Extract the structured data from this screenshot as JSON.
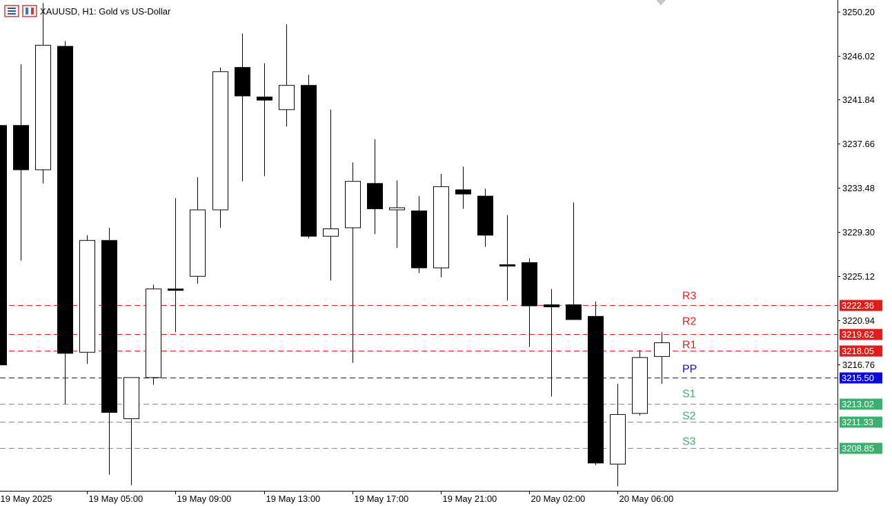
{
  "window": {
    "symbol_title": "XAUUSD, H1:  Gold vs US-Dollar"
  },
  "icons": [
    "menu-icon",
    "one-click-trading-icon"
  ],
  "colors": {
    "bull_body": "#ffffff",
    "bear_body": "#000000",
    "resistance": "#e31b1b",
    "pivot": "#0a0ad6",
    "support": "#3dae6f",
    "grid": "#000000"
  },
  "chart_data": {
    "type": "candlestick",
    "symbol": "XAUUSD",
    "timeframe": "H1",
    "ylim": [
      3204.7,
      3250.9
    ],
    "y_ticks": [
      3250.2,
      3246.02,
      3241.84,
      3237.66,
      3233.48,
      3229.3,
      3225.12,
      3220.94,
      3216.76
    ],
    "x_tick_labels": [
      "19 May 2025",
      "19 May 05:00",
      "19 May 09:00",
      "19 May 13:00",
      "19 May 17:00",
      "19 May 21:00",
      "20 May 02:00",
      "20 May 06:00"
    ],
    "x_tick_index": [
      0,
      4,
      8,
      12,
      16,
      20,
      24,
      28
    ],
    "candles": [
      {
        "o": 3239.4,
        "h": 3239.4,
        "l": 3216.7,
        "c": 3216.7
      },
      {
        "o": 3239.4,
        "h": 3245.2,
        "l": 3226.6,
        "c": 3235.2
      },
      {
        "o": 3235.2,
        "h": 3251.0,
        "l": 3233.9,
        "c": 3247.0
      },
      {
        "o": 3246.9,
        "h": 3247.4,
        "l": 3213.0,
        "c": 3217.8
      },
      {
        "o": 3217.9,
        "h": 3229.0,
        "l": 3216.8,
        "c": 3228.5
      },
      {
        "o": 3228.5,
        "h": 3229.7,
        "l": 3206.3,
        "c": 3212.2
      },
      {
        "o": 3211.6,
        "h": 3215.2,
        "l": 3205.3,
        "c": 3215.5
      },
      {
        "o": 3215.5,
        "h": 3224.3,
        "l": 3214.8,
        "c": 3223.9
      },
      {
        "o": 3223.9,
        "h": 3232.5,
        "l": 3219.8,
        "c": 3223.8
      },
      {
        "o": 3225.1,
        "h": 3234.5,
        "l": 3224.4,
        "c": 3231.4
      },
      {
        "o": 3231.4,
        "h": 3244.9,
        "l": 3229.7,
        "c": 3244.5
      },
      {
        "o": 3244.9,
        "h": 3248.1,
        "l": 3234.1,
        "c": 3242.2
      },
      {
        "o": 3242.1,
        "h": 3245.3,
        "l": 3234.6,
        "c": 3241.8
      },
      {
        "o": 3240.9,
        "h": 3249.0,
        "l": 3239.3,
        "c": 3243.2
      },
      {
        "o": 3243.2,
        "h": 3244.2,
        "l": 3228.7,
        "c": 3228.9
      },
      {
        "o": 3228.9,
        "h": 3240.9,
        "l": 3224.7,
        "c": 3229.6
      },
      {
        "o": 3229.7,
        "h": 3235.9,
        "l": 3216.9,
        "c": 3234.1
      },
      {
        "o": 3233.9,
        "h": 3238.1,
        "l": 3229.1,
        "c": 3231.5
      },
      {
        "o": 3231.4,
        "h": 3234.2,
        "l": 3227.8,
        "c": 3231.6
      },
      {
        "o": 3231.3,
        "h": 3232.7,
        "l": 3225.4,
        "c": 3225.9
      },
      {
        "o": 3225.9,
        "h": 3234.8,
        "l": 3225.0,
        "c": 3233.6
      },
      {
        "o": 3233.3,
        "h": 3235.5,
        "l": 3231.5,
        "c": 3232.9
      },
      {
        "o": 3232.7,
        "h": 3233.4,
        "l": 3227.9,
        "c": 3229.0
      },
      {
        "o": 3226.2,
        "h": 3230.9,
        "l": 3222.8,
        "c": 3226.1
      },
      {
        "o": 3226.4,
        "h": 3226.8,
        "l": 3218.4,
        "c": 3222.3
      },
      {
        "o": 3222.4,
        "h": 3223.9,
        "l": 3213.7,
        "c": 3222.2
      },
      {
        "o": 3222.4,
        "h": 3232.1,
        "l": 3221.1,
        "c": 3221.0
      },
      {
        "o": 3221.3,
        "h": 3222.7,
        "l": 3207.2,
        "c": 3207.4
      },
      {
        "o": 3207.3,
        "h": 3214.9,
        "l": 3205.2,
        "c": 3212.0
      },
      {
        "o": 3212.1,
        "h": 3218.1,
        "l": 3211.9,
        "c": 3217.4
      },
      {
        "o": 3217.5,
        "h": 3219.8,
        "l": 3214.9,
        "c": 3218.8
      }
    ],
    "pivot_levels": [
      {
        "name": "R3",
        "value": 3222.36,
        "label": "3222.36",
        "kind": "resistance"
      },
      {
        "name": "R2",
        "value": 3219.62,
        "label": "3219.62",
        "kind": "resistance"
      },
      {
        "name": "R1",
        "value": 3218.05,
        "label": "3218.05",
        "kind": "resistance"
      },
      {
        "name": "PP",
        "value": 3215.5,
        "label": "3215.50",
        "kind": "pivot"
      },
      {
        "name": "S1",
        "value": 3213.02,
        "label": "3213.02",
        "kind": "support"
      },
      {
        "name": "S2",
        "value": 3211.33,
        "label": "3211.33",
        "kind": "support"
      },
      {
        "name": "S3",
        "value": 3208.85,
        "label": "3208.85",
        "kind": "support"
      }
    ]
  }
}
